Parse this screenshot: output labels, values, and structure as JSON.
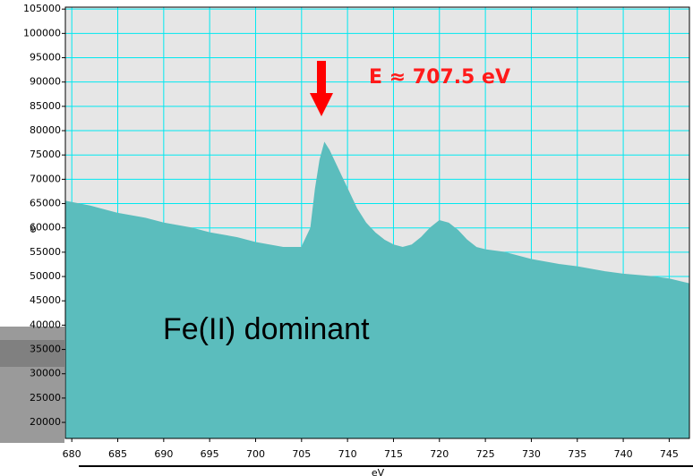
{
  "chart_data": {
    "type": "area",
    "x_label": "eV",
    "y_label": "e-",
    "annotations": [
      "E ≈ 707.5 eV",
      "Fe(II) dominant"
    ],
    "x": [
      679.3,
      682,
      685,
      688,
      690,
      693,
      695,
      698,
      700,
      703,
      705,
      706,
      706.5,
      707,
      707.5,
      708,
      709,
      710,
      711,
      712,
      713,
      714,
      715,
      716,
      717,
      718,
      719,
      720,
      721,
      722,
      723,
      724,
      725,
      727,
      730,
      733,
      735,
      738,
      740,
      743,
      745,
      747.2
    ],
    "values": [
      65500,
      64500,
      63000,
      62000,
      61000,
      60000,
      59000,
      58000,
      57000,
      56000,
      56000,
      60000,
      68000,
      74000,
      77500,
      76000,
      72000,
      68000,
      64000,
      61000,
      59000,
      57500,
      56500,
      56000,
      56500,
      58000,
      60000,
      61500,
      61000,
      59500,
      57500,
      56000,
      55500,
      55000,
      53500,
      52500,
      52000,
      51000,
      50500,
      50000,
      49500,
      48500
    ],
    "color": "#5bbdbd",
    "grid": true,
    "grid_color": "#00e8f0",
    "xlim": [
      679.3,
      747.2
    ],
    "xticks": [
      680,
      685,
      690,
      695,
      700,
      705,
      710,
      715,
      720,
      725,
      730,
      735,
      740,
      745
    ],
    "ylim": [
      16700,
      105400
    ],
    "yticks": [
      20000,
      25000,
      30000,
      35000,
      40000,
      45000,
      50000,
      55000,
      60000,
      65000,
      70000,
      75000,
      80000,
      85000,
      90000,
      95000,
      100000,
      105000
    ]
  }
}
